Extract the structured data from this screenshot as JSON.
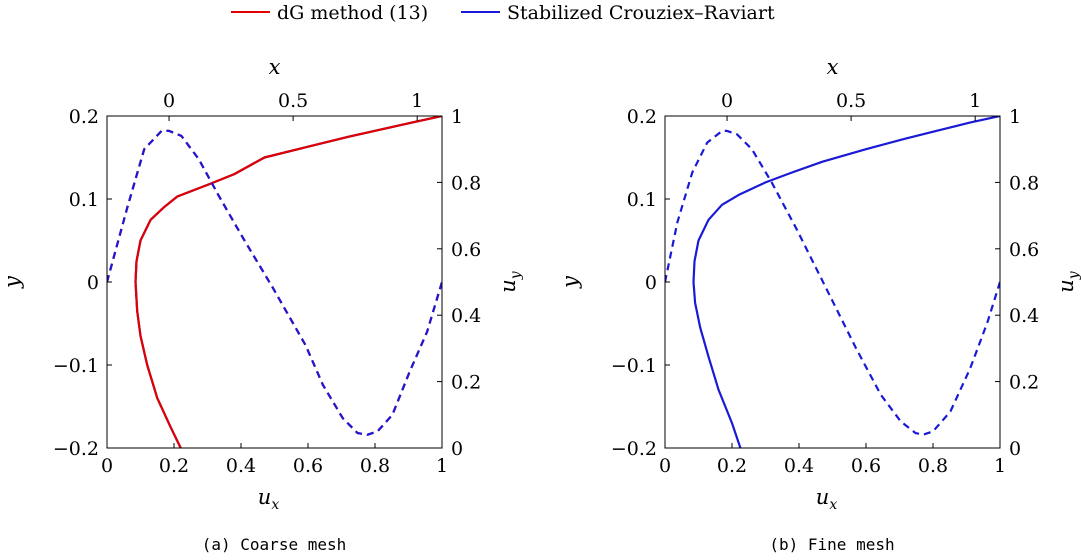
{
  "legend": {
    "items": [
      {
        "label": "dG method (13)",
        "color": "#e00000"
      },
      {
        "label": "Stabilized Crouziex–Raviart",
        "color": "#1a1ad6"
      }
    ]
  },
  "chart_data": [
    {
      "type": "line",
      "caption": "(a) Coarse mesh",
      "xlabel": "u",
      "xlabel_sub": "x",
      "ylabel": "y",
      "x2label": "x",
      "y2label": "u",
      "y2label_sub": "y",
      "xlim": [
        0,
        1
      ],
      "ylim": [
        -0.2,
        0.2
      ],
      "x2lim": [
        -0.25,
        1.1
      ],
      "y2lim": [
        0,
        1
      ],
      "xticks": [
        0,
        0.2,
        0.4,
        0.6,
        0.8,
        1
      ],
      "xtick_labels": [
        "0",
        "0.2",
        "0.4",
        "0.6",
        "0.8",
        "1"
      ],
      "yticks": [
        -0.2,
        -0.1,
        0,
        0.1,
        0.2
      ],
      "ytick_labels": [
        "−0.2",
        "−0.1",
        "0",
        "0.1",
        "0.2"
      ],
      "x2ticks": [
        0,
        0.5,
        1
      ],
      "x2tick_labels": [
        "0",
        "0.5",
        "1"
      ],
      "y2ticks": [
        0,
        0.2,
        0.4,
        0.6,
        0.8,
        1
      ],
      "y2tick_labels": [
        "0",
        "0.2",
        "0.4",
        "0.6",
        "0.8",
        "1"
      ],
      "series": [
        {
          "name": "Stabilized Crouziex–Raviart",
          "axes": "bottom-left",
          "style": "solid",
          "color": "#1a1ad6",
          "x": [
            0.22,
            0.19,
            0.15,
            0.12,
            0.1,
            0.09,
            0.085,
            0.088,
            0.1,
            0.13,
            0.17,
            0.21,
            0.3,
            0.38,
            0.47,
            0.6,
            0.72,
            0.82,
            0.91,
            1.0
          ],
          "y": [
            -0.2,
            -0.175,
            -0.14,
            -0.1,
            -0.065,
            -0.035,
            0.0,
            0.025,
            0.05,
            0.075,
            0.09,
            0.103,
            0.117,
            0.13,
            0.15,
            0.163,
            0.175,
            0.184,
            0.192,
            0.2
          ]
        },
        {
          "name": "dG method (13)",
          "axes": "bottom-left",
          "style": "solid",
          "color": "#e00000",
          "x": [
            0.22,
            0.19,
            0.15,
            0.12,
            0.1,
            0.09,
            0.085,
            0.088,
            0.1,
            0.13,
            0.17,
            0.21,
            0.3,
            0.38,
            0.47,
            0.6,
            0.72,
            0.82,
            0.91,
            1.0
          ],
          "y": [
            -0.2,
            -0.175,
            -0.14,
            -0.1,
            -0.065,
            -0.035,
            0.0,
            0.025,
            0.05,
            0.075,
            0.09,
            0.103,
            0.117,
            0.13,
            0.15,
            0.163,
            0.175,
            0.184,
            0.192,
            0.2
          ]
        },
        {
          "name": "dG method (13)",
          "axes": "top-right",
          "style": "dashed",
          "color": "#e00000",
          "x": [
            -0.25,
            -0.17,
            -0.1,
            -0.03,
            0.0,
            0.05,
            0.12,
            0.2,
            0.3,
            0.42,
            0.55,
            0.62,
            0.7,
            0.76,
            0.8,
            0.84,
            0.9,
            0.97,
            1.04,
            1.1
          ],
          "y": [
            0.5,
            0.72,
            0.9,
            0.955,
            0.955,
            0.94,
            0.87,
            0.76,
            0.63,
            0.48,
            0.31,
            0.19,
            0.09,
            0.045,
            0.04,
            0.05,
            0.1,
            0.23,
            0.35,
            0.5
          ]
        },
        {
          "name": "Stabilized Crouziex–Raviart",
          "axes": "top-right",
          "style": "dashed",
          "color": "#1a1ad6",
          "x": [
            -0.25,
            -0.17,
            -0.1,
            -0.03,
            0.0,
            0.05,
            0.12,
            0.2,
            0.3,
            0.42,
            0.55,
            0.62,
            0.7,
            0.76,
            0.8,
            0.84,
            0.9,
            0.97,
            1.04,
            1.1
          ],
          "y": [
            0.5,
            0.72,
            0.9,
            0.955,
            0.955,
            0.94,
            0.87,
            0.76,
            0.63,
            0.48,
            0.31,
            0.19,
            0.09,
            0.045,
            0.04,
            0.05,
            0.1,
            0.23,
            0.35,
            0.5
          ]
        }
      ]
    },
    {
      "type": "line",
      "caption": "(b) Fine mesh",
      "xlabel": "u",
      "xlabel_sub": "x",
      "ylabel": "y",
      "x2label": "x",
      "y2label": "u",
      "y2label_sub": "y",
      "xlim": [
        0,
        1
      ],
      "ylim": [
        -0.2,
        0.2
      ],
      "x2lim": [
        -0.25,
        1.1
      ],
      "y2lim": [
        0,
        1
      ],
      "xticks": [
        0,
        0.2,
        0.4,
        0.6,
        0.8,
        1
      ],
      "xtick_labels": [
        "0",
        "0.2",
        "0.4",
        "0.6",
        "0.8",
        "1"
      ],
      "yticks": [
        -0.2,
        -0.1,
        0,
        0.1,
        0.2
      ],
      "ytick_labels": [
        "−0.2",
        "−0.1",
        "0",
        "0.1",
        "0.2"
      ],
      "x2ticks": [
        0,
        0.5,
        1
      ],
      "x2tick_labels": [
        "0",
        "0.5",
        "1"
      ],
      "y2ticks": [
        0,
        0.2,
        0.4,
        0.6,
        0.8,
        1
      ],
      "y2tick_labels": [
        "0",
        "0.2",
        "0.4",
        "0.6",
        "0.8",
        "1"
      ],
      "series": [
        {
          "name": "Stabilized Crouziex–Raviart",
          "axes": "bottom-left",
          "style": "solid",
          "color": "#1a1ad6",
          "x": [
            0.225,
            0.2,
            0.16,
            0.13,
            0.105,
            0.09,
            0.085,
            0.088,
            0.1,
            0.13,
            0.17,
            0.22,
            0.3,
            0.38,
            0.47,
            0.6,
            0.72,
            0.82,
            0.91,
            1.0
          ],
          "y": [
            -0.2,
            -0.17,
            -0.13,
            -0.09,
            -0.055,
            -0.025,
            0.0,
            0.025,
            0.05,
            0.075,
            0.093,
            0.105,
            0.12,
            0.132,
            0.145,
            0.16,
            0.173,
            0.183,
            0.192,
            0.2
          ]
        },
        {
          "name": "Stabilized Crouziex–Raviart",
          "axes": "top-right",
          "style": "dashed",
          "color": "#1a1ad6",
          "x": [
            -0.25,
            -0.2,
            -0.14,
            -0.08,
            -0.02,
            0.0,
            0.04,
            0.1,
            0.18,
            0.28,
            0.4,
            0.52,
            0.62,
            0.7,
            0.76,
            0.79,
            0.83,
            0.9,
            0.98,
            1.05,
            1.1
          ],
          "y": [
            0.5,
            0.68,
            0.83,
            0.92,
            0.955,
            0.955,
            0.945,
            0.9,
            0.8,
            0.66,
            0.48,
            0.3,
            0.16,
            0.08,
            0.045,
            0.04,
            0.05,
            0.11,
            0.24,
            0.38,
            0.5
          ]
        }
      ]
    }
  ]
}
